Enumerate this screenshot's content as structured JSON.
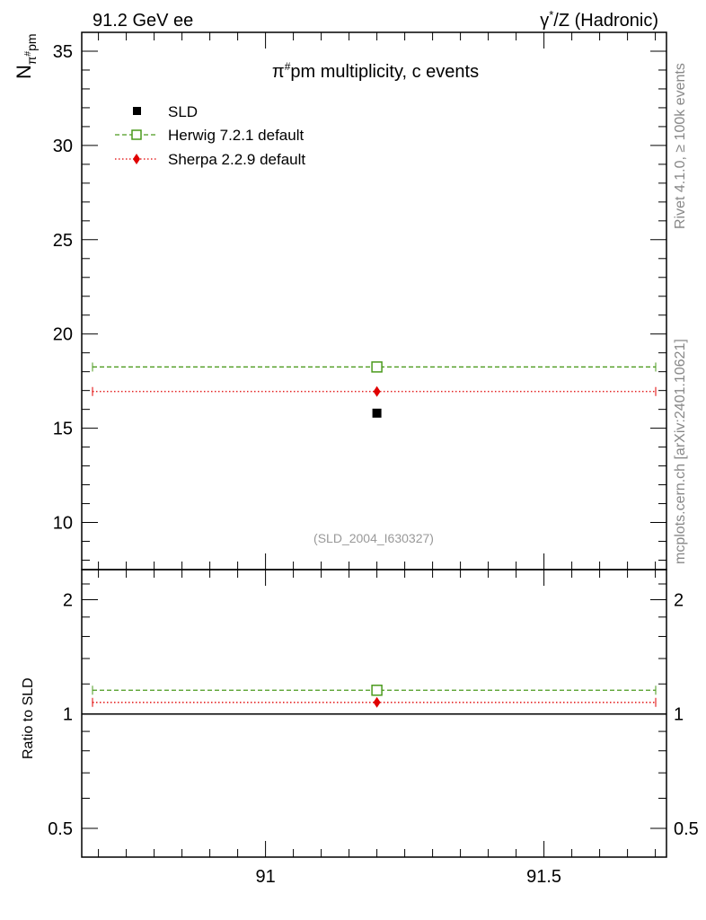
{
  "header": {
    "left": "91.2 GeV ee",
    "right_pre": "γ",
    "right_sup": "*",
    "right_post": "/Z (Hadronic)"
  },
  "side_labels": {
    "rivet": "Rivet 4.1.0, ≥ 100k events",
    "mcplots": "mcplots.cern.ch [arXiv:2401.10621]"
  },
  "colors": {
    "data": "#000000",
    "herwig": "#4a9a1c",
    "sherpa": "#e00000",
    "watermark": "#999999",
    "side_label": "#888888"
  },
  "chart_data": [
    {
      "type": "scatter",
      "title_pre": "π",
      "title_sup": "#",
      "title_post": "pm multiplicity, c events",
      "ylabel_main": "N",
      "ylabel_sub": "π",
      "ylabel_subsup": "#",
      "ylabel_subpost": "pm",
      "watermark": "(SLD_2004_I630327)",
      "xlim": [
        90.67,
        91.72
      ],
      "ylim": [
        7.5,
        36
      ],
      "yticks": [
        10,
        15,
        20,
        25,
        30,
        35
      ],
      "ytick_labels": [
        "10",
        "15",
        "20",
        "25",
        "30",
        "35"
      ],
      "series": [
        {
          "name": "SLD",
          "style": "data",
          "x": 91.2,
          "y": 15.8,
          "marker": "filled-square"
        },
        {
          "name": "Herwig 7.2.1 default",
          "style": "herwig",
          "x": 91.2,
          "y": 18.25,
          "line": "dashed",
          "marker": "open-square"
        },
        {
          "name": "Sherpa 2.2.9 default",
          "style": "sherpa",
          "x": 91.2,
          "y": 16.95,
          "line": "dotted",
          "marker": "diamond"
        }
      ]
    },
    {
      "type": "scatter",
      "ylabel": "Ratio to SLD",
      "xlabel": "",
      "xlim": [
        90.67,
        91.72
      ],
      "ylim": [
        0.42,
        2.4
      ],
      "yscale": "log",
      "yticks": [
        0.5,
        1,
        2
      ],
      "ytick_labels": [
        "0.5",
        "1",
        "2"
      ],
      "xticks": [
        91,
        91.5
      ],
      "xtick_labels": [
        "91",
        "91.5"
      ],
      "reference": 1,
      "series": [
        {
          "name": "Herwig 7.2.1 default",
          "style": "herwig",
          "x": 91.2,
          "y": 1.155,
          "line": "dashed",
          "marker": "open-square"
        },
        {
          "name": "Sherpa 2.2.9 default",
          "style": "sherpa",
          "x": 91.2,
          "y": 1.073,
          "line": "dotted",
          "marker": "diamond"
        }
      ]
    }
  ]
}
